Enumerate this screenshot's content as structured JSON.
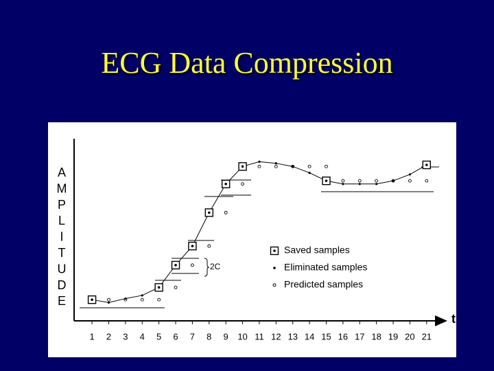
{
  "chart_data": {
    "type": "line",
    "title": "ECG Data Compression",
    "y_label": "AMPLITUDE",
    "x_label": "t",
    "annotation": "2C",
    "xlim": [
      -0.07,
      21.5
    ],
    "xticks": [
      1,
      2,
      3,
      4,
      5,
      6,
      7,
      8,
      9,
      10,
      11,
      12,
      13,
      14,
      15,
      16,
      17,
      18,
      19,
      20,
      21
    ],
    "ylim": [
      0,
      11.7
    ],
    "series": [
      {
        "name": "Saved samples",
        "marker": "square",
        "color": "#000000",
        "x": [
          1,
          5,
          6,
          7,
          8,
          9,
          10,
          15,
          21
        ],
        "values": [
          1.33,
          2.1,
          3.5,
          4.7,
          6.8,
          8.6,
          9.7,
          8.8,
          9.8
        ]
      },
      {
        "name": "Eliminated samples",
        "marker": "dot",
        "color": "#000000",
        "x": [
          1,
          2,
          3,
          4,
          5,
          6,
          7,
          8,
          9,
          10,
          11,
          12,
          13,
          14,
          15,
          16,
          17,
          18,
          19,
          20,
          21
        ],
        "values": [
          1.33,
          1.15,
          1.4,
          1.6,
          2.1,
          3.5,
          4.7,
          6.8,
          8.6,
          9.7,
          10.0,
          9.9,
          9.7,
          9.3,
          8.8,
          8.6,
          8.6,
          8.6,
          8.8,
          9.2,
          9.8
        ]
      },
      {
        "name": "Predicted samples",
        "marker": "circle",
        "color": "#000000",
        "x": [
          2,
          3,
          4,
          5,
          6,
          7,
          8,
          9,
          10,
          11,
          12,
          13,
          14,
          15,
          16,
          17,
          18,
          19,
          20,
          21
        ],
        "values": [
          1.33,
          1.33,
          1.33,
          1.33,
          2.1,
          3.5,
          4.7,
          6.8,
          8.6,
          9.7,
          9.7,
          9.7,
          9.7,
          9.7,
          8.8,
          8.8,
          8.8,
          8.8,
          8.8,
          8.8
        ]
      }
    ]
  }
}
